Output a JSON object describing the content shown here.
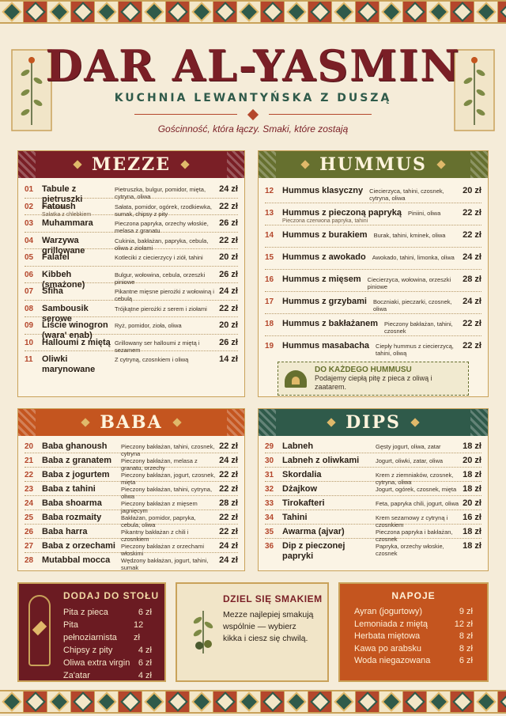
{
  "header": {
    "title": "DAR AL-YASMIN",
    "subtitle": "KUCHNIA LEWANTYŃSKA Z DUSZĄ",
    "tagline": "Gościnność, która łączy. Smaki, które zostają"
  },
  "mezze": {
    "title": "MEZZE",
    "items": [
      {
        "num": "01",
        "name": "Tabule z pietruszki",
        "sub": "Pietruszka",
        "desc": "Pietruszka, bulgur, pomidor, mięta, cytryna, oliwa",
        "price": "24 zł"
      },
      {
        "num": "02",
        "name": "Fatoush",
        "sub": "Sałatka z chlebkiem",
        "desc": "Sałata, pomidor, ogórek, rzodkiewka, sumak, chipsy z pity",
        "price": "22 zł"
      },
      {
        "num": "03",
        "name": "Muhammara",
        "sub": "",
        "desc": "Pieczona papryka, orzechy włoskie, melasa z granatu",
        "price": "26 zł"
      },
      {
        "num": "04",
        "name": "Warzywa grillowane",
        "sub": "",
        "desc": "Cukinia, bakłażan, papryka, cebula, oliwa z ziołami",
        "price": "22 zł"
      },
      {
        "num": "05",
        "name": "Falafel",
        "sub": "",
        "desc": "Kotleciki z ciecierzycy i ziół, tahini",
        "price": "20 zł"
      },
      {
        "num": "06",
        "name": "Kibbeh (smażone)",
        "sub": "",
        "desc": "Bulgur, wołowina, cebula, orzeszki piniowe",
        "price": "26 zł"
      },
      {
        "num": "07",
        "name": "Sfiha",
        "sub": "",
        "desc": "Pikantne mięsne pierożki z wołowiną i cebulą",
        "price": "24 zł"
      },
      {
        "num": "08",
        "name": "Sambousik serowe",
        "sub": "",
        "desc": "Trójkątne pierożki z serem i ziołami",
        "price": "22 zł"
      },
      {
        "num": "09",
        "name": "Liście winogron (wara' enab)",
        "sub": "",
        "desc": "Ryż, pomidor, zioła, oliwa",
        "price": "20 zł"
      },
      {
        "num": "10",
        "name": "Halloumi z miętą",
        "sub": "",
        "desc": "Grillowany ser halloumi z miętą i sezamem",
        "price": "26 zł"
      },
      {
        "num": "11",
        "name": "Oliwki marynowane",
        "sub": "",
        "desc": "Z cytryną, czosnkiem i oliwą",
        "price": "14 zł"
      }
    ]
  },
  "hummus": {
    "title": "HUMMUS",
    "items": [
      {
        "num": "12",
        "name": "Hummus klasyczny",
        "sub": "",
        "desc": "Ciecierzyca, tahini, czosnek, cytryna, oliwa",
        "price": "20 zł"
      },
      {
        "num": "13",
        "name": "Hummus z pieczoną papryką",
        "sub": "Pieczona czerwona papryka, tahini",
        "desc": "Piniini, oliwa",
        "price": "22 zł"
      },
      {
        "num": "14",
        "name": "Hummus z burakiem",
        "sub": "",
        "desc": "Burak, tahini, kminek, oliwa",
        "price": "22 zł"
      },
      {
        "num": "15",
        "name": "Hummus z awokado",
        "sub": "",
        "desc": "Awokado, tahini, limonka, oliwa",
        "price": "24 zł"
      },
      {
        "num": "16",
        "name": "Hummus z mięsem",
        "sub": "",
        "desc": "Ciecierzyca, wołowina, orzeszki piniowe",
        "price": "28 zł"
      },
      {
        "num": "17",
        "name": "Hummus z grzybami",
        "sub": "",
        "desc": "Boczniaki, pieczarki, czosnek, oliwa",
        "price": "24 zł"
      },
      {
        "num": "18",
        "name": "Hummus z bakłażanem",
        "sub": "",
        "desc": "Pieczony bakłażan, tahini, czosnek",
        "price": "22 zł"
      },
      {
        "num": "19",
        "name": "Hummus masabacha",
        "sub": "",
        "desc": "Ciepły hummus z ciecierzycą, tahini, oliwą",
        "price": "22 zł"
      }
    ],
    "note_title": "DO KAŻDEGO HUMMUSU",
    "note_text": "Podajemy ciepłą pitę z pieca z oliwą i zaatarem."
  },
  "baba": {
    "title": "BABA",
    "items": [
      {
        "num": "20",
        "name": "Baba ghanoush",
        "desc": "Pieczony bakłażan, tahini, czosnek, cytryna",
        "price": "22 zł"
      },
      {
        "num": "21",
        "name": "Baba z granatem",
        "desc": "Pieczony bakłażan, melasa z granatu, orzechy",
        "price": "24 zł"
      },
      {
        "num": "22",
        "name": "Baba z jogurtem",
        "desc": "Pieczony bakłażan, jogurt, czosnek, mięta",
        "price": "22 zł"
      },
      {
        "num": "23",
        "name": "Baba z tahini",
        "desc": "Pieczony bakłażan, tahini, cytryna, oliwa",
        "price": "22 zł"
      },
      {
        "num": "24",
        "name": "Baba shoarma",
        "desc": "Pieczony bakłażan z mięsem jagnięcym",
        "price": "28 zł"
      },
      {
        "num": "25",
        "name": "Baba rozmaity",
        "desc": "Bakłażan, pomidor, papryka, cebula, oliwa",
        "price": "22 zł"
      },
      {
        "num": "26",
        "name": "Baba harra",
        "desc": "Pikantny bakłażan z chili i czosnkiem",
        "price": "22 zł"
      },
      {
        "num": "27",
        "name": "Baba z orzechami",
        "desc": "Pieczony bakłażan z orzechami włoskimi",
        "price": "24 zł"
      },
      {
        "num": "28",
        "name": "Mutabbal mocca",
        "desc": "Wędzony bakłażan, jogurt, tahini, sumak",
        "price": "24 zł"
      }
    ]
  },
  "dips": {
    "title": "DIPS",
    "items": [
      {
        "num": "29",
        "name": "Labneh",
        "desc": "Gęsty jogurt, oliwa, zatar",
        "price": "18 zł"
      },
      {
        "num": "30",
        "name": "Labneh z oliwkami",
        "desc": "Jogurt, oliwki, zatar, oliwa",
        "price": "20 zł"
      },
      {
        "num": "31",
        "name": "Skordalia",
        "desc": "Krem z ziemniaków, czosnek, cytryna, oliwa",
        "price": "18 zł"
      },
      {
        "num": "32",
        "name": "Dżajkow",
        "desc": "Jogurt, ogórek, czosnek, mięta",
        "price": "18 zł"
      },
      {
        "num": "33",
        "name": "Tirokafteri",
        "desc": "Feta, papryka chili, jogurt, oliwa",
        "price": "20 zł"
      },
      {
        "num": "34",
        "name": "Tahini",
        "desc": "Krem sezamowy z cytryną i czosnkiem",
        "price": "16 zł"
      },
      {
        "num": "35",
        "name": "Awarma (ajvar)",
        "desc": "Pieczona papryka i bakłażan, czosnek",
        "price": "18 zł"
      },
      {
        "num": "36",
        "name": "Dip z pieczonej papryki",
        "desc": "Papryka, orzechy włoskie, czosnek",
        "price": "18 zł"
      }
    ]
  },
  "addons": {
    "title": "DODAJ DO STOŁU",
    "items": [
      {
        "name": "Pita z pieca",
        "price": "6 zł"
      },
      {
        "name": "Pita pełnoziarnista",
        "price": "12 zł"
      },
      {
        "name": "Chipsy z pity",
        "price": "4 zł"
      },
      {
        "name": "Oliwa extra virgin",
        "price": "6 zł"
      },
      {
        "name": "Za'atar",
        "price": "4 zł"
      }
    ]
  },
  "share": {
    "title": "DZIEL SIĘ SMAKIEM",
    "text": "Mezze najlepiej smakują wspólnie — wybierz kikka i ciesz się chwilą."
  },
  "drinks": {
    "title": "NAPOJE",
    "items": [
      {
        "name": "Ayran (jogurtowy)",
        "price": "9 zł"
      },
      {
        "name": "Lemoniada z miętą",
        "price": "12 zł"
      },
      {
        "name": "Herbata miętowa",
        "price": "8 zł"
      },
      {
        "name": "Kawa po arabsku",
        "price": "8 zł"
      },
      {
        "name": "Woda niegazowana",
        "price": "6 zł"
      }
    ]
  },
  "colors": {
    "burgundy": "#7a1f26",
    "olive": "#66702f",
    "orange": "#c4551f",
    "cream": "#f5ecd9",
    "gold": "#c9a25a"
  }
}
